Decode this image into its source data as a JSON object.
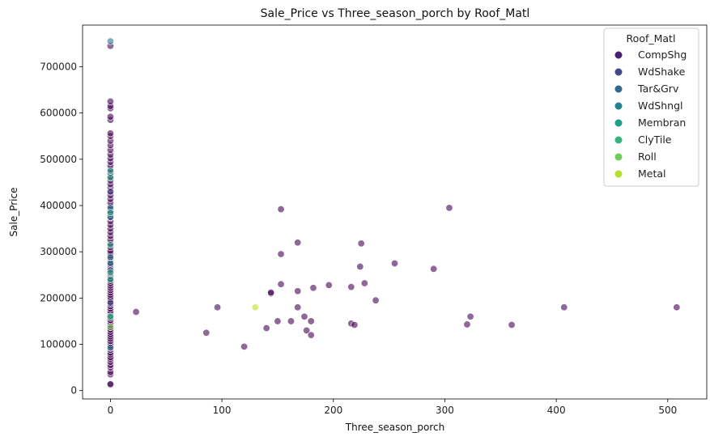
{
  "chart_data": {
    "type": "scatter",
    "title": "Sale_Price vs Three_season_porch by Roof_Matl",
    "xlabel": "Three_season_porch",
    "ylabel": "Sale_Price",
    "xlim": [
      -25,
      535
    ],
    "ylim": [
      -18000,
      790000
    ],
    "xticks": [
      0,
      100,
      200,
      300,
      400,
      500
    ],
    "yticks": [
      0,
      100000,
      200000,
      300000,
      400000,
      500000,
      600000,
      700000
    ],
    "grid": false,
    "legend": {
      "title": "Roof_Matl",
      "placement": "top-right"
    },
    "point_opacity": 0.6,
    "series": [
      {
        "name": "CompShg",
        "color": "#440154",
        "points": [
          [
            0,
            12800
          ],
          [
            0,
            14000
          ],
          [
            0,
            35000
          ],
          [
            0,
            40000
          ],
          [
            0,
            50000
          ],
          [
            0,
            55000
          ],
          [
            0,
            62000
          ],
          [
            0,
            68000
          ],
          [
            0,
            72000
          ],
          [
            0,
            78000
          ],
          [
            0,
            82000
          ],
          [
            0,
            88000
          ],
          [
            0,
            92000
          ],
          [
            0,
            97000
          ],
          [
            0,
            102000
          ],
          [
            0,
            107000
          ],
          [
            0,
            112000
          ],
          [
            0,
            117000
          ],
          [
            0,
            122000
          ],
          [
            0,
            127000
          ],
          [
            0,
            132000
          ],
          [
            0,
            137000
          ],
          [
            0,
            142000
          ],
          [
            0,
            147000
          ],
          [
            0,
            152000
          ],
          [
            0,
            157000
          ],
          [
            0,
            162000
          ],
          [
            0,
            167000
          ],
          [
            0,
            172000
          ],
          [
            0,
            177000
          ],
          [
            0,
            182000
          ],
          [
            0,
            187000
          ],
          [
            0,
            192000
          ],
          [
            0,
            197000
          ],
          [
            0,
            202000
          ],
          [
            0,
            207000
          ],
          [
            0,
            212000
          ],
          [
            0,
            217000
          ],
          [
            0,
            222000
          ],
          [
            0,
            227000
          ],
          [
            0,
            232000
          ],
          [
            0,
            237000
          ],
          [
            0,
            242000
          ],
          [
            0,
            247000
          ],
          [
            0,
            252000
          ],
          [
            0,
            257000
          ],
          [
            0,
            262000
          ],
          [
            0,
            267000
          ],
          [
            0,
            272000
          ],
          [
            0,
            277000
          ],
          [
            0,
            282000
          ],
          [
            0,
            287000
          ],
          [
            0,
            292000
          ],
          [
            0,
            297000
          ],
          [
            0,
            302000
          ],
          [
            0,
            310000
          ],
          [
            0,
            318000
          ],
          [
            0,
            326000
          ],
          [
            0,
            334000
          ],
          [
            0,
            342000
          ],
          [
            0,
            350000
          ],
          [
            0,
            358000
          ],
          [
            0,
            366000
          ],
          [
            0,
            374000
          ],
          [
            0,
            382000
          ],
          [
            0,
            390000
          ],
          [
            0,
            398000
          ],
          [
            0,
            406000
          ],
          [
            0,
            414000
          ],
          [
            0,
            422000
          ],
          [
            0,
            430000
          ],
          [
            0,
            438000
          ],
          [
            0,
            446000
          ],
          [
            0,
            454000
          ],
          [
            0,
            462000
          ],
          [
            0,
            470000
          ],
          [
            0,
            478000
          ],
          [
            0,
            486000
          ],
          [
            0,
            494000
          ],
          [
            0,
            502000
          ],
          [
            0,
            510000
          ],
          [
            0,
            520000
          ],
          [
            0,
            530000
          ],
          [
            0,
            540000
          ],
          [
            0,
            550000
          ],
          [
            0,
            556000
          ],
          [
            0,
            585000
          ],
          [
            0,
            592000
          ],
          [
            0,
            610000
          ],
          [
            0,
            615000
          ],
          [
            0,
            625000
          ],
          [
            0,
            745000
          ],
          [
            23,
            170000
          ],
          [
            86,
            125000
          ],
          [
            96,
            180000
          ],
          [
            120,
            95000
          ],
          [
            140,
            135000
          ],
          [
            144,
            210000
          ],
          [
            144,
            212000
          ],
          [
            150,
            150000
          ],
          [
            153,
            230000
          ],
          [
            153,
            295000
          ],
          [
            153,
            392000
          ],
          [
            162,
            150000
          ],
          [
            168,
            215000
          ],
          [
            168,
            180000
          ],
          [
            168,
            320000
          ],
          [
            174,
            160000
          ],
          [
            176,
            130000
          ],
          [
            180,
            150000
          ],
          [
            180,
            120000
          ],
          [
            182,
            222000
          ],
          [
            196,
            228000
          ],
          [
            216,
            224000
          ],
          [
            216,
            145000
          ],
          [
            219,
            142000
          ],
          [
            224,
            268000
          ],
          [
            225,
            318000
          ],
          [
            228,
            232000
          ],
          [
            238,
            195000
          ],
          [
            255,
            275000
          ],
          [
            290,
            263000
          ],
          [
            304,
            395000
          ],
          [
            320,
            143000
          ],
          [
            323,
            160000
          ],
          [
            360,
            142000
          ],
          [
            407,
            180000
          ],
          [
            508,
            180000
          ]
        ]
      },
      {
        "name": "WdShake",
        "color": "#414487",
        "points": [
          [
            0,
            190000
          ],
          [
            0,
            260000
          ],
          [
            0,
            385000
          ],
          [
            0,
            430000
          ]
        ]
      },
      {
        "name": "Tar&Grv",
        "color": "#2a788e",
        "points": [
          [
            0,
            755000
          ],
          [
            0,
            395000
          ],
          [
            0,
            375000
          ],
          [
            0,
            288000
          ],
          [
            0,
            275000
          ],
          [
            0,
            160000
          ],
          [
            0,
            93000
          ]
        ]
      },
      {
        "name": "WdShngl",
        "color": "#22a884",
        "points": [
          [
            0,
            255000
          ],
          [
            0,
            315000
          ],
          [
            0,
            385000
          ],
          [
            0,
            460000
          ],
          [
            0,
            475000
          ]
        ]
      },
      {
        "name": "Membran",
        "color": "#22a884",
        "points": [
          [
            0,
            240000
          ]
        ]
      },
      {
        "name": "ClyTile",
        "color": "#35b779",
        "points": [
          [
            0,
            160000
          ]
        ]
      },
      {
        "name": "Roll",
        "color": "#7ad151",
        "points": [
          [
            0,
            137000
          ]
        ]
      },
      {
        "name": "Metal",
        "color": "#bddf26",
        "points": [
          [
            130,
            180000
          ]
        ]
      }
    ],
    "legend_entries": [
      {
        "name": "CompShg",
        "color": "#482173"
      },
      {
        "name": "WdShake",
        "color": "#3e4a89"
      },
      {
        "name": "Tar&Grv",
        "color": "#31688e"
      },
      {
        "name": "WdShngl",
        "color": "#26828e"
      },
      {
        "name": "Membran",
        "color": "#1f9e89"
      },
      {
        "name": "ClyTile",
        "color": "#35b779"
      },
      {
        "name": "Roll",
        "color": "#6ece58"
      },
      {
        "name": "Metal",
        "color": "#b5de2b"
      }
    ]
  }
}
